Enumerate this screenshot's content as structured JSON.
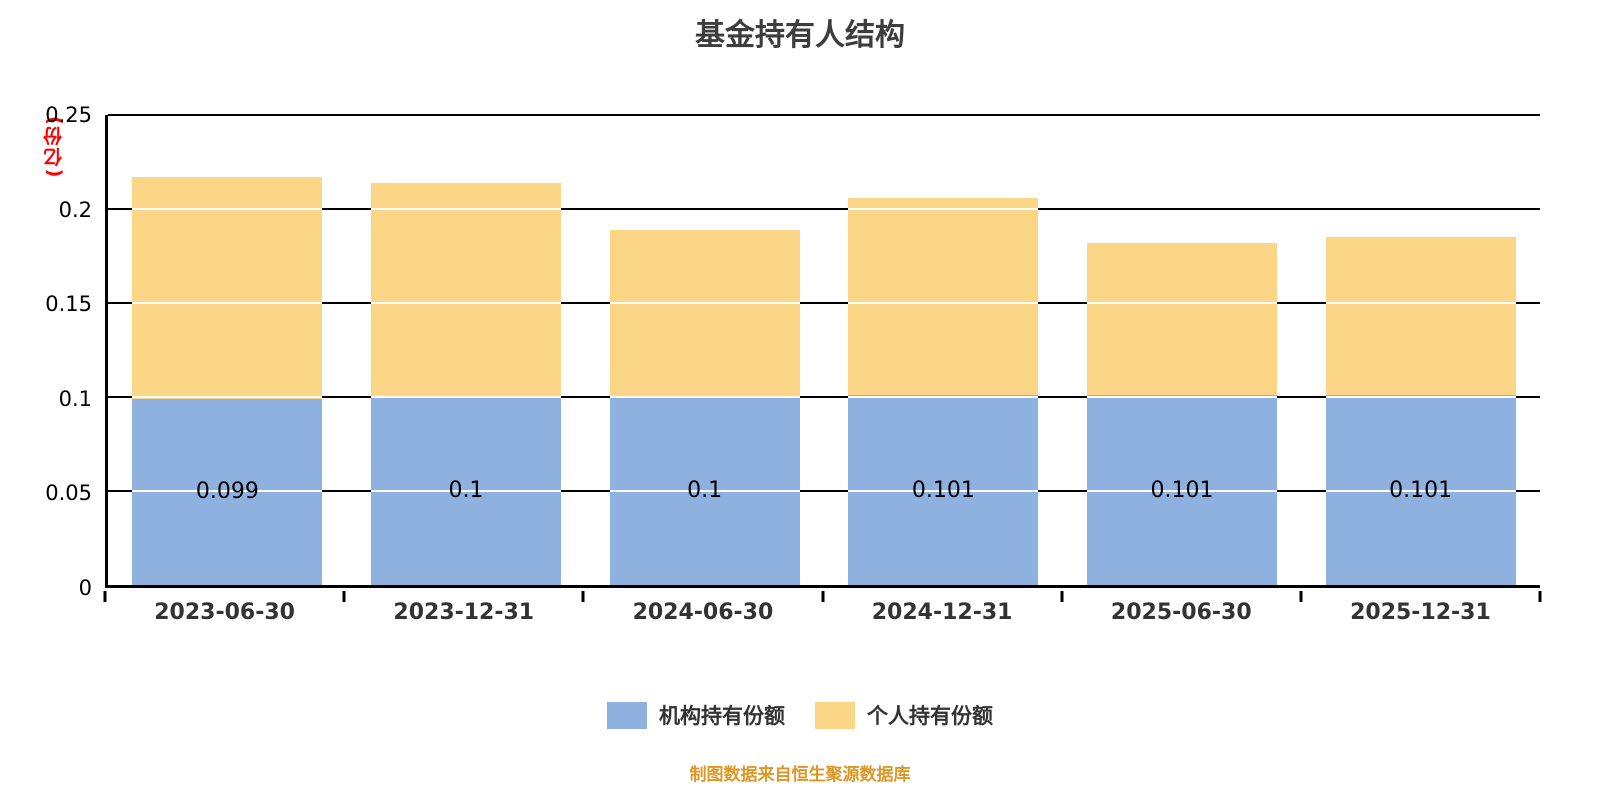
{
  "chart_data": {
    "type": "bar",
    "stacked": true,
    "title": "基金持有人结构",
    "y_unit_label": "(亿份)",
    "y_unit_color": "#ff0000",
    "categories": [
      "2023-06-30",
      "2023-12-31",
      "2024-06-30",
      "2024-12-31",
      "2025-06-30",
      "2025-12-31"
    ],
    "series": [
      {
        "name": "机构持有份额",
        "color": "#8FB1DF",
        "values": [
          0.099,
          0.1,
          0.1,
          0.101,
          0.101,
          0.101
        ],
        "value_labels": [
          "0.099",
          "0.1",
          "0.1",
          "0.101",
          "0.101",
          "0.101"
        ]
      },
      {
        "name": "个人持有份额",
        "color": "#FBD687",
        "values": [
          0.118,
          0.114,
          0.089,
          0.105,
          0.081,
          0.084
        ],
        "value_labels": []
      }
    ],
    "ylim": [
      0,
      0.25
    ],
    "yticks": [
      0,
      0.05,
      0.1,
      0.15,
      0.2,
      0.25
    ],
    "grid": true,
    "legend_position": "bottom",
    "caption": "制图数据来自恒生聚源数据库",
    "caption_color": "#DD9726"
  }
}
